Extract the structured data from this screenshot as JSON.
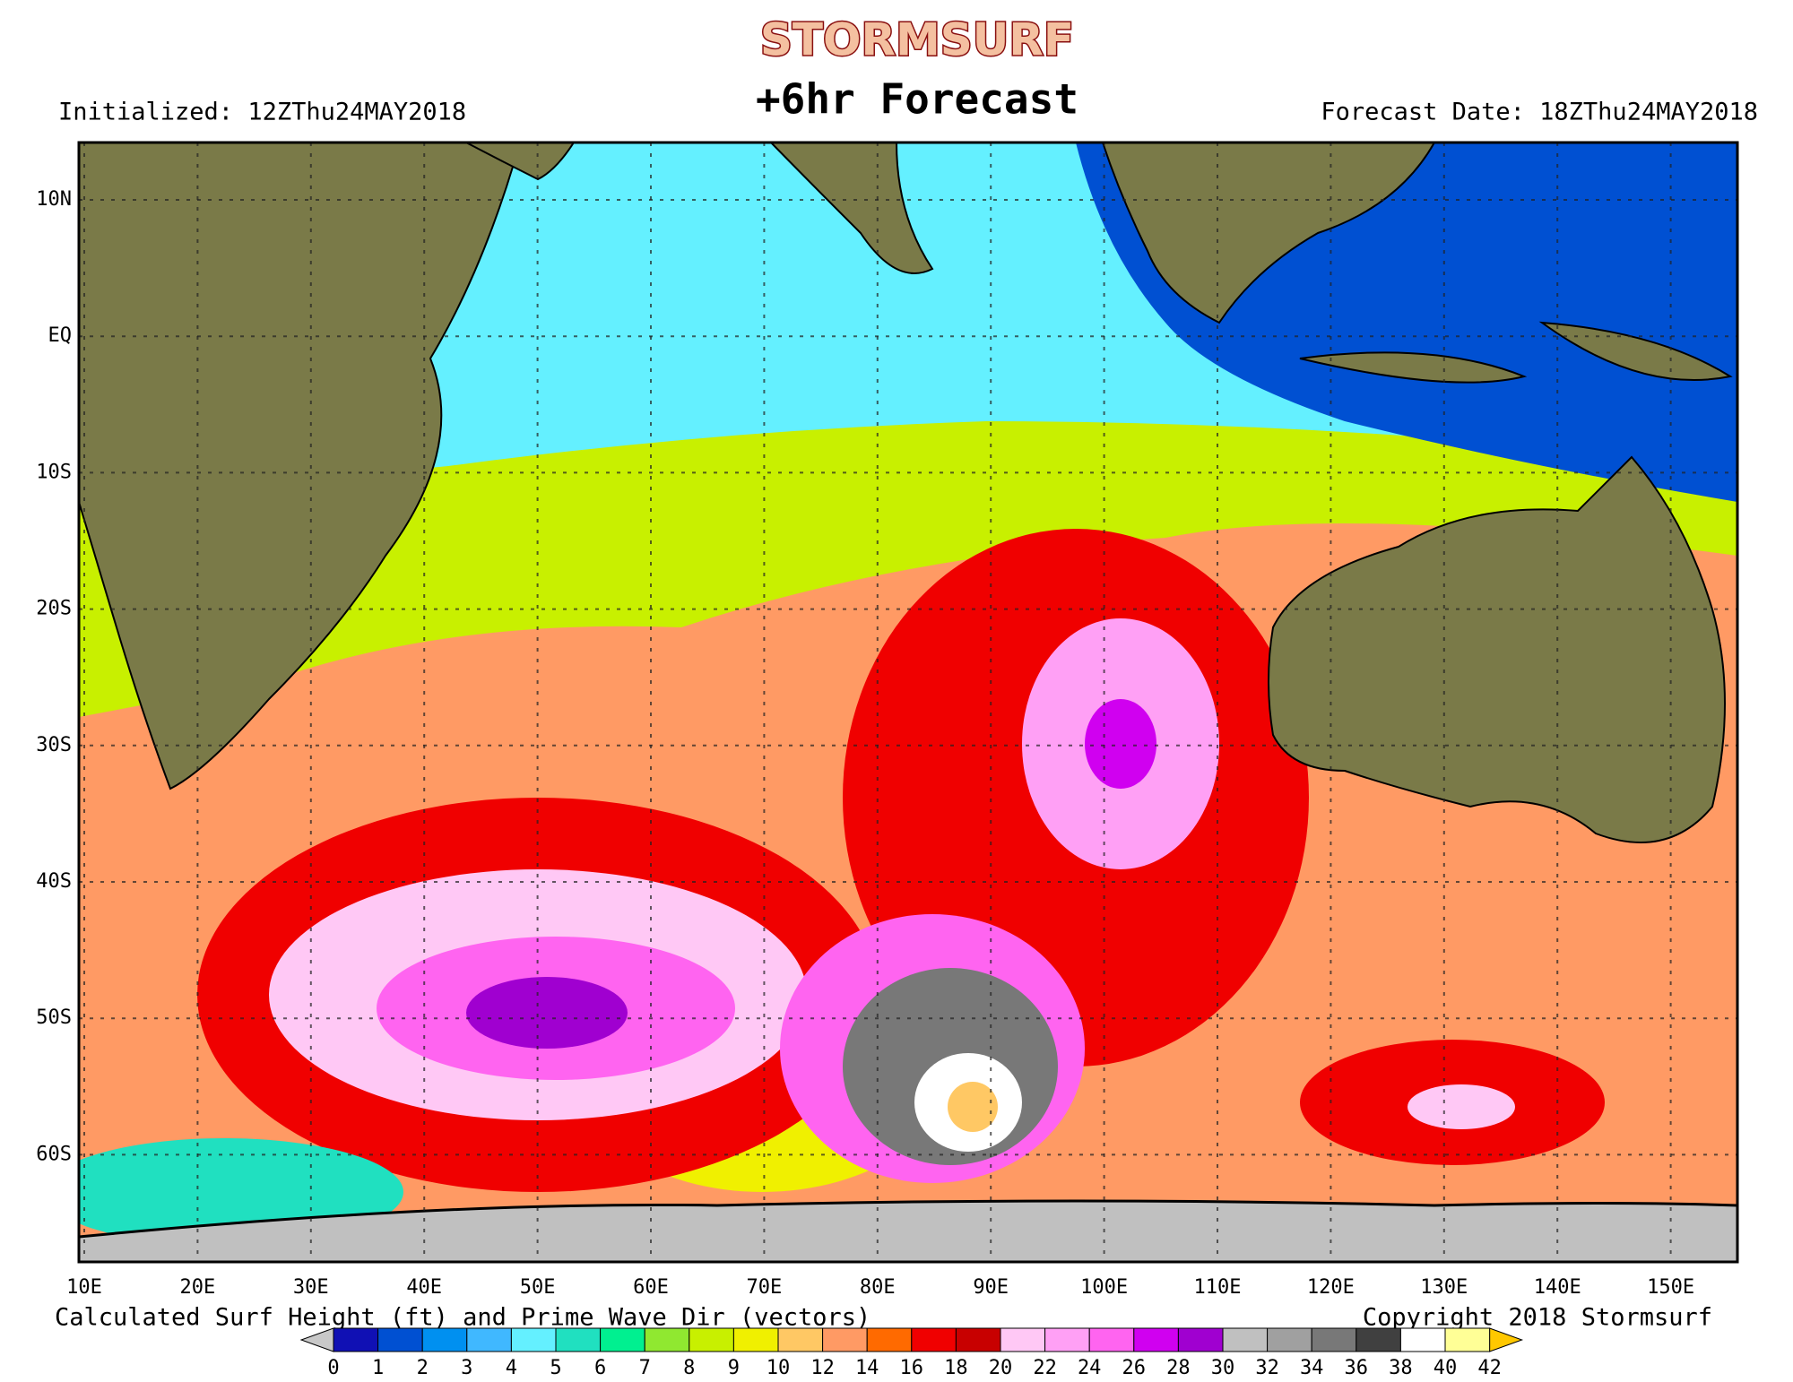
{
  "header": {
    "logo": "STORMSURF",
    "title": "+6hr Forecast",
    "initialized": "Initialized: 12ZThu24MAY2018",
    "forecast_date": "Forecast Date: 18ZThu24MAY2018"
  },
  "map": {
    "lat_labels": [
      "10N",
      "EQ",
      "10S",
      "20S",
      "30S",
      "40S",
      "50S",
      "60S"
    ],
    "lon_labels": [
      "10E",
      "20E",
      "30E",
      "40E",
      "50E",
      "60E",
      "70E",
      "80E",
      "90E",
      "100E",
      "110E",
      "120E",
      "130E",
      "140E",
      "150E"
    ]
  },
  "footer": {
    "caption": "Calculated Surf Height (ft) and Prime Wave Dir (vectors)",
    "copyright": "Copyright 2018 Stormsurf"
  },
  "legend": {
    "ticks": [
      0,
      1,
      2,
      3,
      4,
      5,
      6,
      7,
      8,
      9,
      10,
      12,
      14,
      16,
      18,
      20,
      22,
      24,
      26,
      28,
      30,
      32,
      34,
      36,
      38,
      40,
      42
    ],
    "colors": [
      "#1010b4",
      "#0050d2",
      "#0090f0",
      "#40b8ff",
      "#64f0ff",
      "#20e0c0",
      "#00f090",
      "#90e830",
      "#c8f000",
      "#f0f000",
      "#ffc864",
      "#ff9a64",
      "#ff6a00",
      "#f00000",
      "#c80000",
      "#ffc8f5",
      "#ffa0f5",
      "#ff64f0",
      "#d000f0",
      "#a000d0",
      "#c0c0c0",
      "#a0a0a0",
      "#787878",
      "#404040",
      "#ffffff",
      "#ffff96"
    ]
  }
}
